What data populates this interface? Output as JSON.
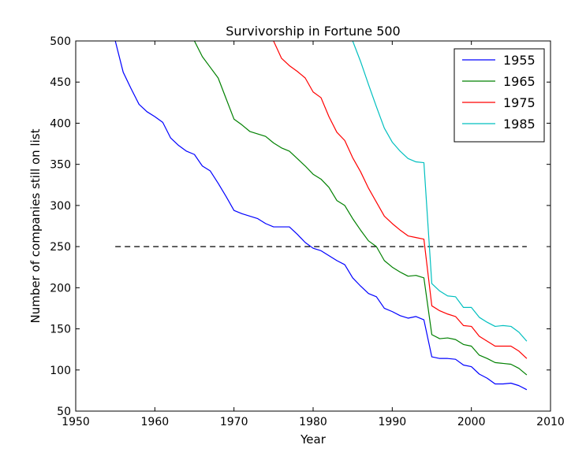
{
  "chart_data": {
    "type": "line",
    "title": "Survivorship in Fortune 500",
    "xlabel": "Year",
    "ylabel": "Number of companies still on list",
    "xlim": [
      1950,
      2010
    ],
    "ylim": [
      50,
      500
    ],
    "xticks": [
      1950,
      1960,
      1970,
      1980,
      1990,
      2000,
      2010
    ],
    "yticks": [
      50,
      100,
      150,
      200,
      250,
      300,
      350,
      400,
      450,
      500
    ],
    "grid": false,
    "legend_position": "top-right",
    "reference_line": {
      "y": 250,
      "x_start": 1955,
      "x_end": 2007,
      "style": "dashed",
      "color": "#000000"
    },
    "series": [
      {
        "name": "1955",
        "color": "#0000ff",
        "x": [
          1955,
          1956,
          1957,
          1958,
          1959,
          1960,
          1961,
          1962,
          1963,
          1964,
          1965,
          1966,
          1967,
          1968,
          1969,
          1970,
          1971,
          1972,
          1973,
          1974,
          1975,
          1976,
          1977,
          1978,
          1979,
          1980,
          1981,
          1982,
          1983,
          1984,
          1985,
          1986,
          1987,
          1988,
          1989,
          1990,
          1991,
          1992,
          1993,
          1994,
          1995,
          1996,
          1997,
          1998,
          1999,
          2000,
          2001,
          2002,
          2003,
          2004,
          2005,
          2006,
          2007
        ],
        "y": [
          500,
          462,
          442,
          423,
          414,
          408,
          401,
          382,
          373,
          366,
          362,
          348,
          342,
          327,
          311,
          294,
          290,
          287,
          284,
          278,
          274,
          274,
          274,
          265,
          255,
          248,
          245,
          239,
          233,
          228,
          212,
          202,
          193,
          189,
          175,
          171,
          166,
          163,
          165,
          161,
          116,
          114,
          114,
          113,
          106,
          104,
          95,
          90,
          83,
          83,
          84,
          81,
          76
        ]
      },
      {
        "name": "1965",
        "color": "#008000",
        "x": [
          1965,
          1966,
          1967,
          1968,
          1969,
          1970,
          1971,
          1972,
          1973,
          1974,
          1975,
          1976,
          1977,
          1978,
          1979,
          1980,
          1981,
          1982,
          1983,
          1984,
          1985,
          1986,
          1987,
          1988,
          1989,
          1990,
          1991,
          1992,
          1993,
          1994,
          1995,
          1996,
          1997,
          1998,
          1999,
          2000,
          2001,
          2002,
          2003,
          2004,
          2005,
          2006,
          2007
        ],
        "y": [
          500,
          481,
          468,
          455,
          430,
          405,
          398,
          390,
          387,
          384,
          376,
          370,
          366,
          357,
          348,
          338,
          332,
          322,
          306,
          300,
          284,
          270,
          257,
          250,
          233,
          225,
          219,
          214,
          215,
          212,
          143,
          138,
          139,
          137,
          131,
          129,
          118,
          114,
          109,
          108,
          107,
          102,
          94
        ]
      },
      {
        "name": "1975",
        "color": "#ff0000",
        "x": [
          1975,
          1976,
          1977,
          1978,
          1979,
          1980,
          1981,
          1982,
          1983,
          1984,
          1985,
          1986,
          1987,
          1988,
          1989,
          1990,
          1991,
          1992,
          1993,
          1994,
          1995,
          1996,
          1997,
          1998,
          1999,
          2000,
          2001,
          2002,
          2003,
          2004,
          2005,
          2006,
          2007
        ],
        "y": [
          500,
          479,
          470,
          463,
          455,
          438,
          431,
          408,
          389,
          379,
          358,
          341,
          321,
          304,
          287,
          278,
          270,
          263,
          261,
          259,
          178,
          172,
          168,
          165,
          154,
          153,
          141,
          135,
          129,
          129,
          129,
          123,
          114
        ]
      },
      {
        "name": "1985",
        "color": "#00bfbf",
        "x": [
          1985,
          1986,
          1987,
          1988,
          1989,
          1990,
          1991,
          1992,
          1993,
          1994,
          1995,
          1996,
          1997,
          1998,
          1999,
          2000,
          2001,
          2002,
          2003,
          2004,
          2005,
          2006,
          2007
        ],
        "y": [
          500,
          475,
          447,
          420,
          394,
          377,
          366,
          357,
          353,
          352,
          205,
          196,
          190,
          189,
          176,
          176,
          164,
          158,
          153,
          154,
          153,
          146,
          135
        ]
      }
    ]
  }
}
